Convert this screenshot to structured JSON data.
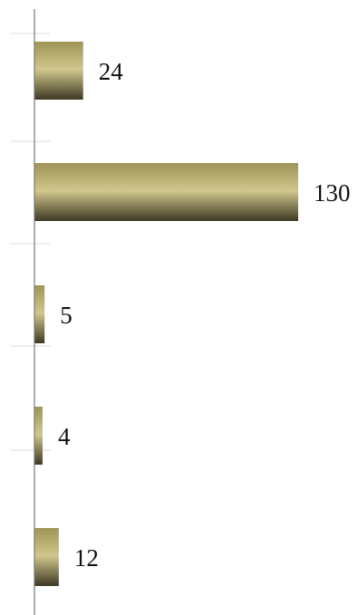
{
  "chart_data": {
    "type": "bar",
    "orientation": "horizontal",
    "categories": [
      "",
      "",
      "",
      "",
      ""
    ],
    "values": [
      24,
      130,
      5,
      4,
      12
    ],
    "value_labels": [
      "24",
      "130",
      "5",
      "4",
      "12"
    ],
    "title": "",
    "xlabel": "",
    "ylabel": "",
    "xlim": [
      0,
      130
    ],
    "grid": false,
    "legend": false,
    "bar_color": "#9f9456",
    "bar_highlight_color": "#d1c78d",
    "bar_shadow_color": "#3d3923",
    "axis_color": "#777777",
    "tick_color": "#dddddd"
  }
}
